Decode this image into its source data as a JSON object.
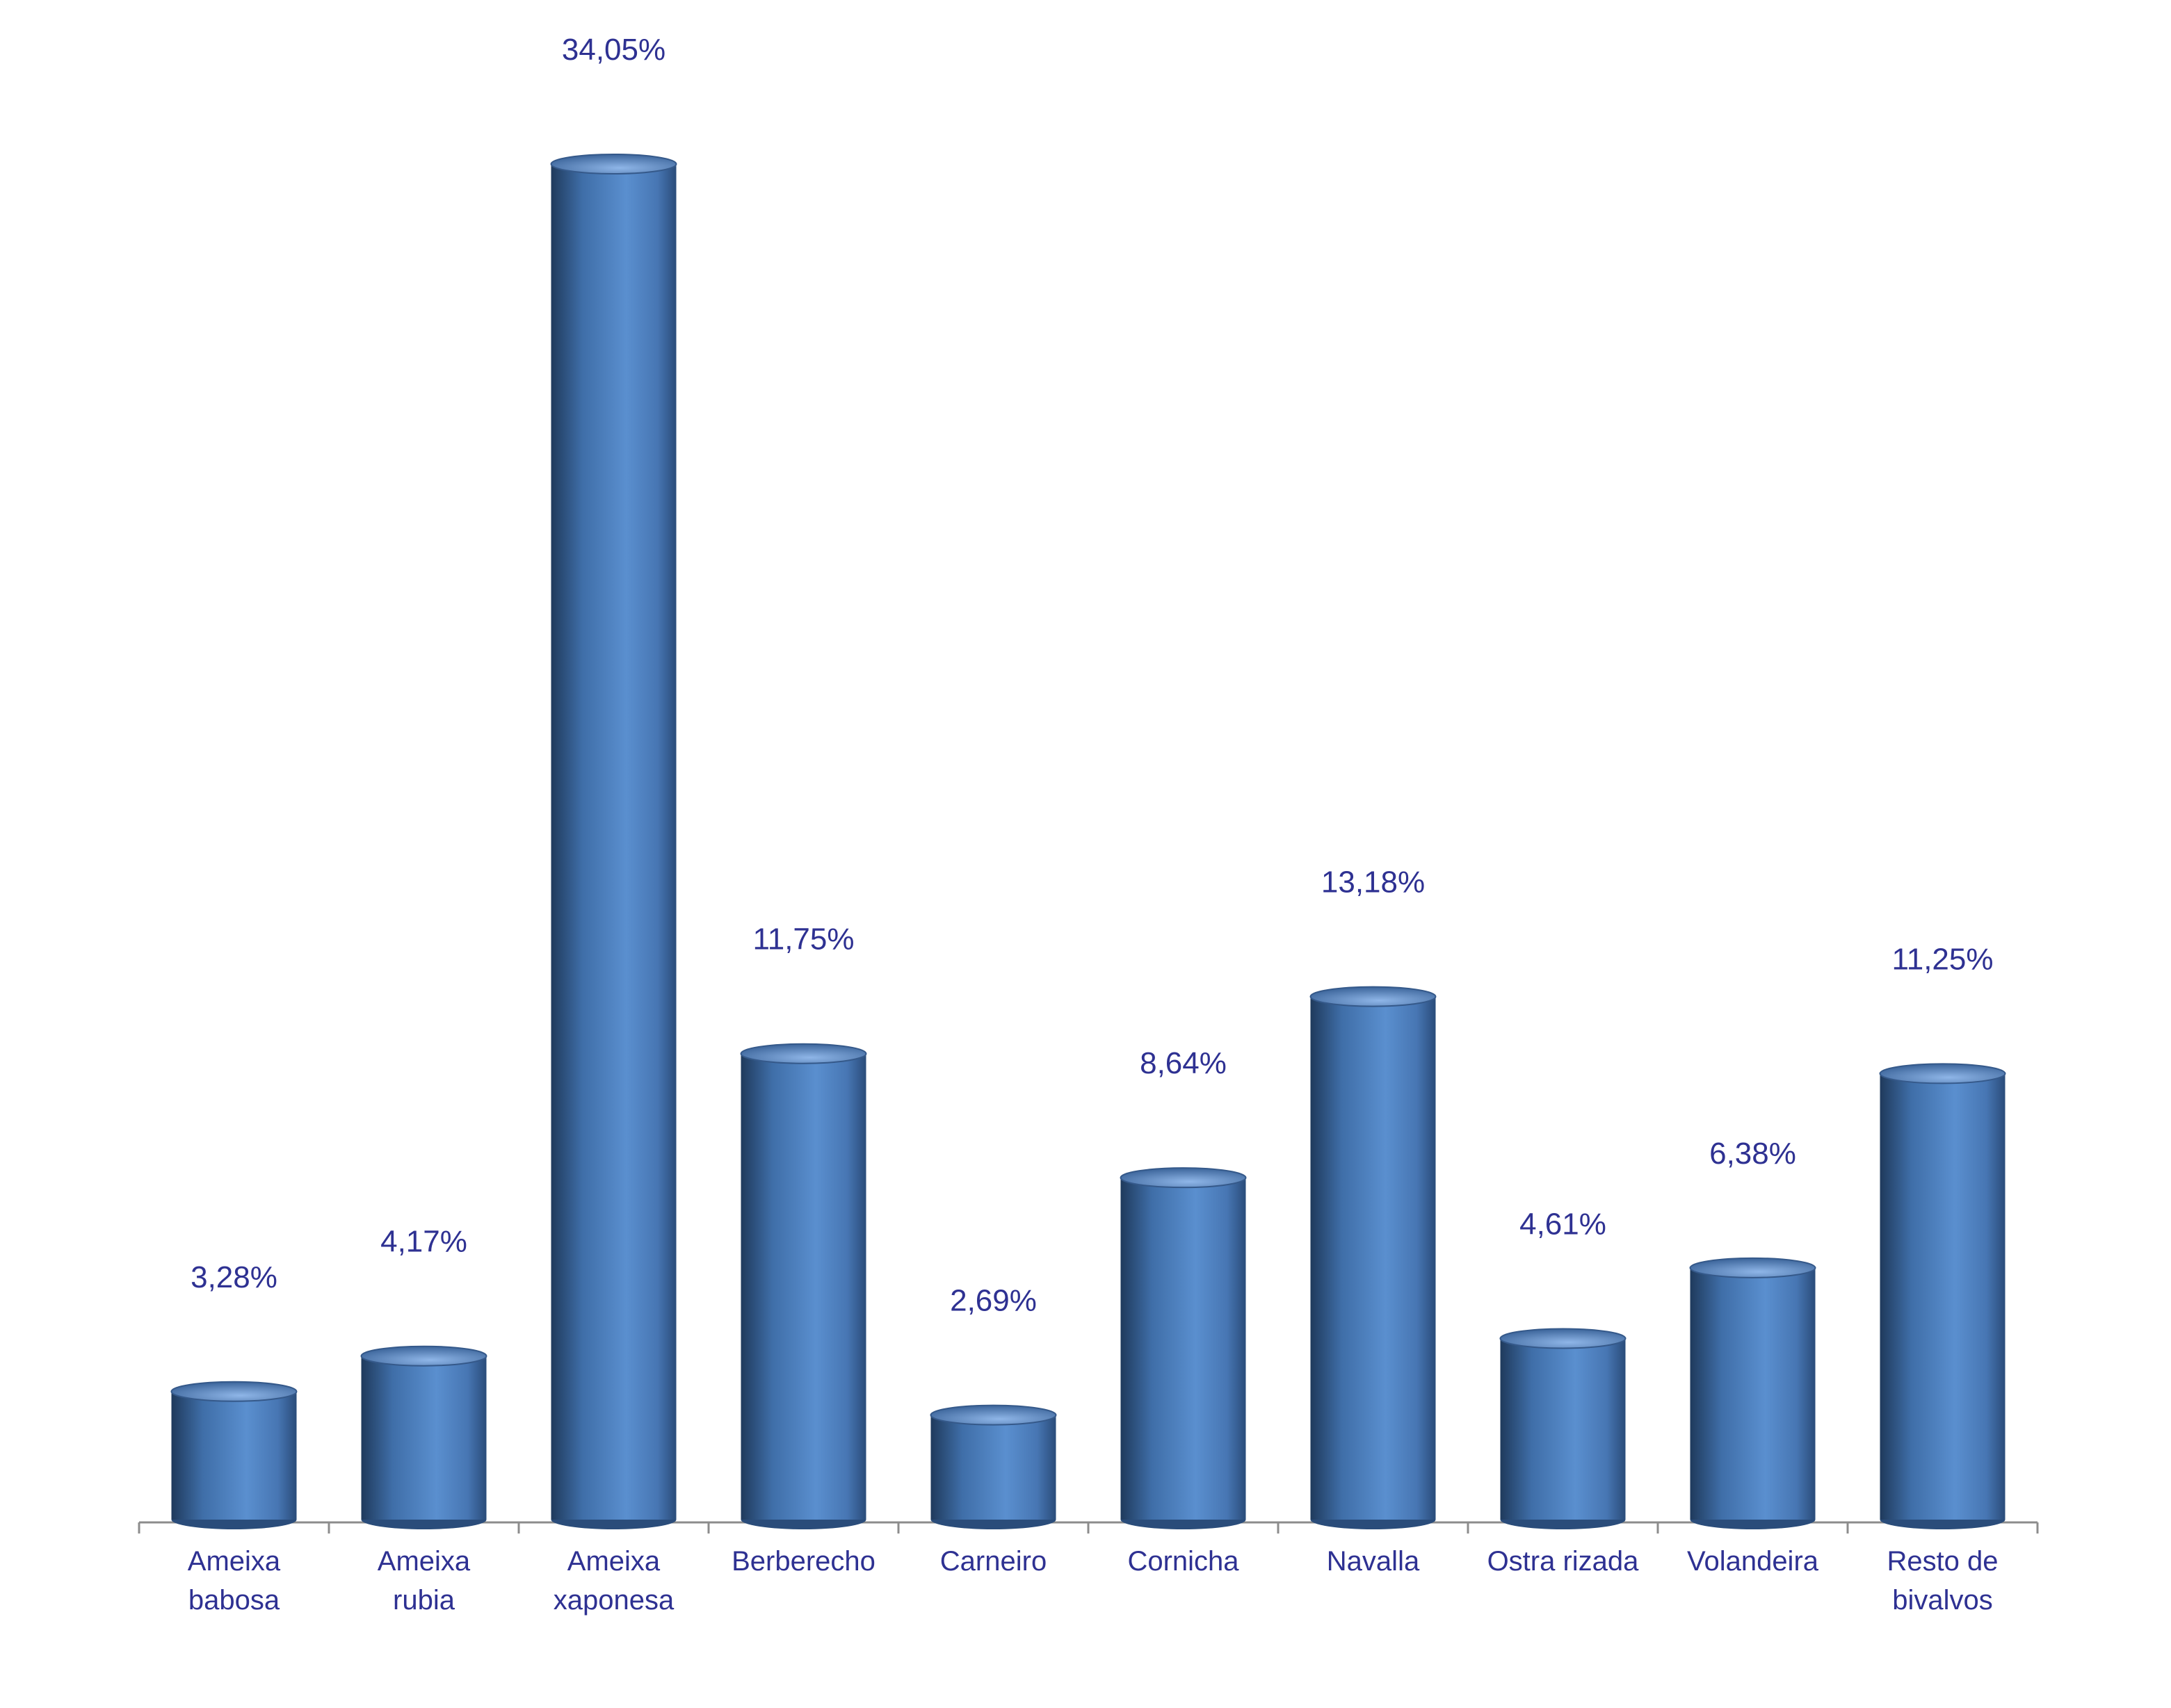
{
  "chart_data": {
    "type": "bar",
    "categories": [
      "Ameixa\nbabosa",
      "Ameixa\nrubia",
      "Ameixa\nxaponesa",
      "Berberecho",
      "Carneiro",
      "Cornicha",
      "Navalla",
      "Ostra rizada",
      "Volandeira",
      "Resto de\nbivalvos"
    ],
    "values": [
      3.28,
      4.17,
      34.05,
      11.75,
      2.69,
      8.64,
      13.18,
      4.61,
      6.38,
      11.25
    ],
    "value_labels": [
      "3,28%",
      "4,17%",
      "34,05%",
      "11,75%",
      "2,69%",
      "8,64%",
      "13,18%",
      "4,61%",
      "6,38%",
      "11,25%"
    ],
    "color": "#4f81bd"
  }
}
